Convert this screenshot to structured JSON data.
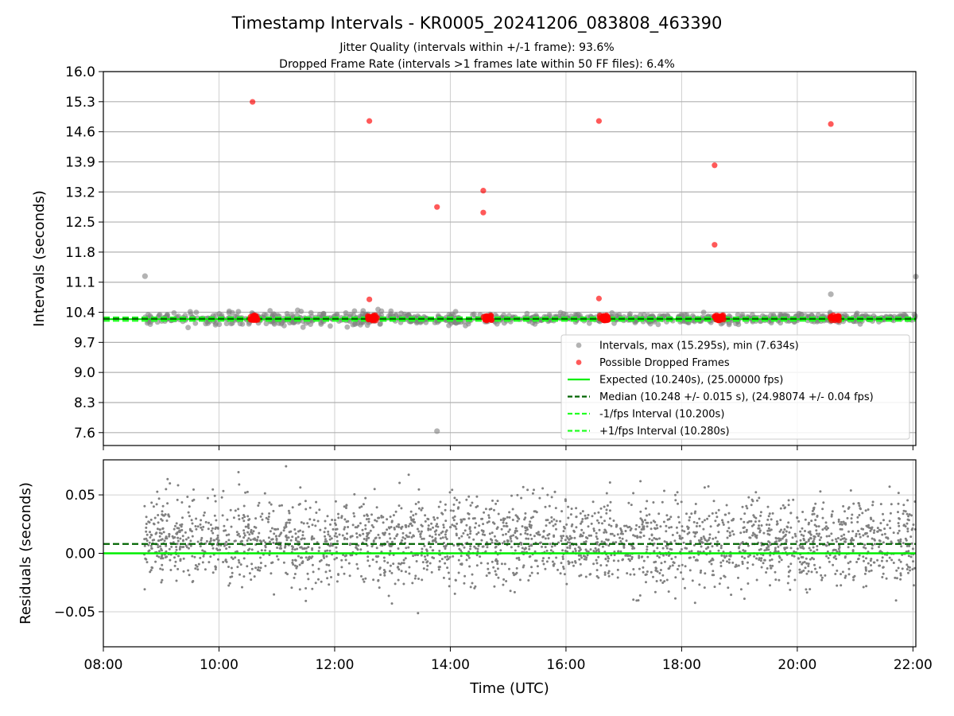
{
  "chart_data": [
    {
      "type": "scatter",
      "title": "Timestamp Intervals - KR0005_20241206_083808_463390",
      "subtitle_lines": [
        "Jitter Quality (intervals within +/-1 frame): 93.6%",
        "Dropped Frame Rate (intervals >1 frames late within 50 FF files): 6.4%"
      ],
      "xlabel": "",
      "ylabel": "Intervals (seconds)",
      "xlim_hours": [
        8.0,
        22.05
      ],
      "ylim": [
        7.3,
        16.0
      ],
      "yticks": [
        7.6,
        8.3,
        9.0,
        9.7,
        10.4,
        11.1,
        11.8,
        12.5,
        13.2,
        13.9,
        14.6,
        15.3,
        16.0
      ],
      "grid": true,
      "legend_position": "lower-right",
      "legend": [
        "Intervals, max (15.295s), min (7.634s)",
        "Possible Dropped Frames",
        "Expected (10.240s), (25.00000 fps)",
        "Median (10.248 +/- 0.015 s), (24.98074 +/- 0.04 fps)",
        "-1/fps Interval (10.200s)",
        "+1/fps Interval (10.280s)"
      ],
      "reference_lines": {
        "expected": 10.24,
        "median": 10.248,
        "minus_one_fps": 10.2,
        "plus_one_fps": 10.28
      },
      "series": [
        {
          "name": "Intervals, max (15.295s), min (7.634s)",
          "x_hours": [
            8.72,
            13.77,
            20.58,
            22.05
          ],
          "y": [
            11.24,
            7.634,
            10.82,
            11.23
          ],
          "note_dense_band": "about 2800 points between 8.7 and 22.05 h clustered at 10.2–10.5 s"
        },
        {
          "name": "Possible Dropped Frames",
          "x_hours": [
            10.58,
            12.6,
            13.77,
            14.57,
            14.57,
            12.6,
            16.57,
            16.57,
            18.57,
            18.57,
            20.58
          ],
          "y": [
            15.295,
            14.85,
            12.85,
            13.23,
            12.72,
            10.7,
            14.85,
            10.72,
            13.82,
            11.97,
            14.78
          ],
          "clusters_x_hours": [
            10.62,
            12.65,
            14.65,
            16.65,
            18.65,
            20.65
          ],
          "clusters_y": 10.27
        }
      ]
    },
    {
      "type": "scatter",
      "title": "",
      "xlabel": "Time (UTC)",
      "ylabel": "Residuals (seconds)",
      "xlim_hours": [
        8.0,
        22.05
      ],
      "ylim": [
        -0.08,
        0.08
      ],
      "xticks": [
        "08:00",
        "10:00",
        "12:00",
        "14:00",
        "16:00",
        "18:00",
        "20:00",
        "22:00"
      ],
      "yticks": [
        -0.05,
        0.0,
        0.05
      ],
      "ytick_labels": [
        "−0.05",
        "0.00",
        "0.05"
      ],
      "grid": true,
      "reference_lines": {
        "expected_residual": 0.0,
        "median_residual": 0.008
      },
      "series": [
        {
          "name": "",
          "x_range_hours": [
            8.7,
            22.05
          ],
          "center": 0.01,
          "spread_sd": 0.018,
          "approx_count": 2800
        }
      ]
    }
  ],
  "colors": {
    "intervals": "#808080",
    "dropped": "#ff0000",
    "expected": "#00ee00",
    "median": "#006400",
    "fps_bound": "#22ff22",
    "grid": "#b0b0b0"
  }
}
